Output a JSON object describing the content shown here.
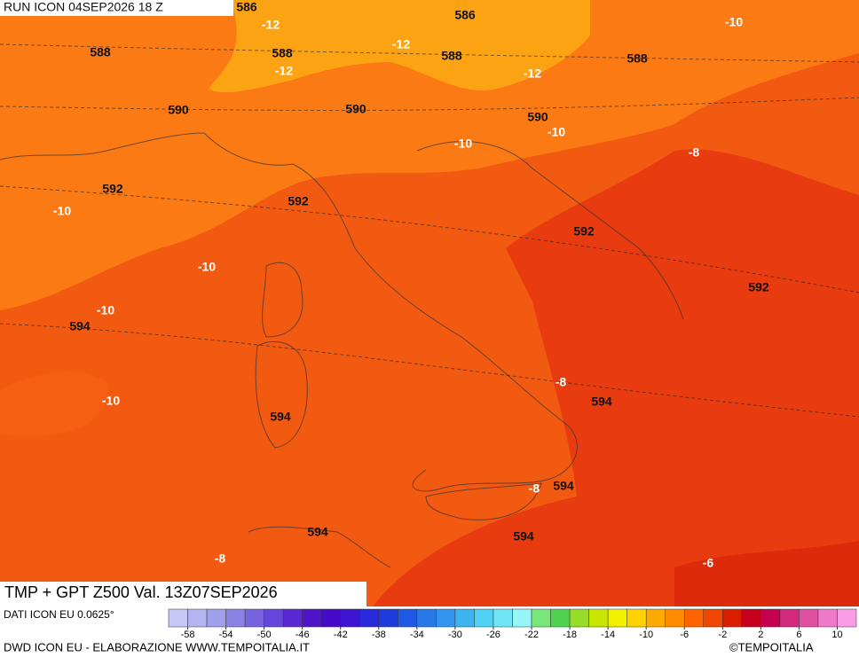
{
  "header": {
    "run": "RUN ICON 04SEP2026 18 Z",
    "title": "TMP + GPT Z500 Val. 13Z07SEP2026"
  },
  "map": {
    "geopotential_labels": [
      586,
      586,
      588,
      588,
      588,
      588,
      590,
      590,
      590,
      592,
      592,
      592,
      592,
      594,
      594,
      594,
      594,
      594,
      594
    ],
    "temperature_labels": [
      -12,
      -12,
      -12,
      -12,
      -10,
      -10,
      -10,
      -10,
      -10,
      -10,
      -10,
      -8,
      -8,
      -8,
      -8,
      -6
    ]
  },
  "colorbar": {
    "colors": [
      "#c8c8f5",
      "#b4b4f0",
      "#a0a0ec",
      "#8c82e6",
      "#7864e0",
      "#6446dc",
      "#5a28d2",
      "#5014c8",
      "#460ac8",
      "#3c14d2",
      "#2828dc",
      "#1e3cdc",
      "#1e5ae6",
      "#2878e6",
      "#3296f0",
      "#3cb4f0",
      "#50d2f5",
      "#6ee6f5",
      "#96f5f5",
      "#78e678",
      "#50d250",
      "#96dc28",
      "#c8e600",
      "#f0f000",
      "#ffd200",
      "#ffaa00",
      "#ff8c00",
      "#ff6400",
      "#f04600",
      "#dc1e00",
      "#c8001e",
      "#c80050",
      "#d2287d",
      "#e150a0",
      "#f078c8",
      "#fa9be6"
    ],
    "ticks": [
      -58,
      -54,
      -50,
      -46,
      -42,
      -38,
      -34,
      -30,
      -26,
      -22,
      -18,
      -14,
      -10,
      -6,
      -2,
      2,
      6,
      10
    ]
  },
  "footer": {
    "data": "DATI ICON EU 0.0625°",
    "credit": "DWD ICON EU - ELABORAZIONE WWW.TEMPOITALIA.IT",
    "copyright": "©TEMPOITALIA"
  }
}
